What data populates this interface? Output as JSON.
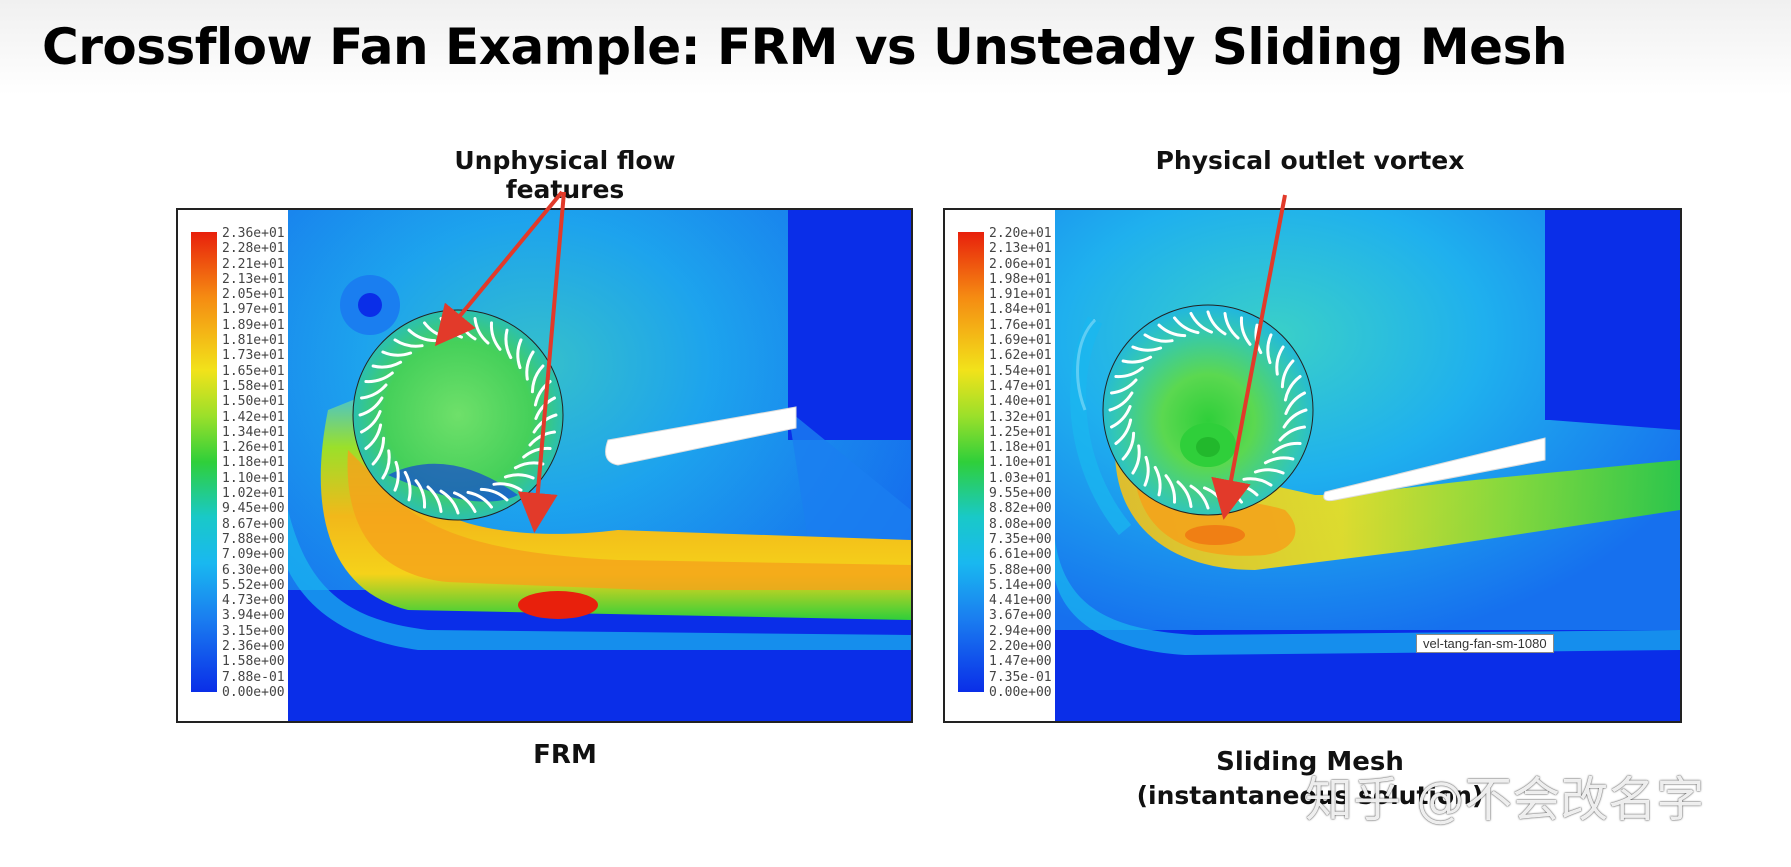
{
  "slide": {
    "title": "Crossflow Fan Example: FRM vs Unsteady Sliding Mesh"
  },
  "left_panel": {
    "annotation": "Unphysical flow features",
    "caption": "FRM",
    "legend_labels": [
      "2.36e+01",
      "2.28e+01",
      "2.21e+01",
      "2.13e+01",
      "2.05e+01",
      "1.97e+01",
      "1.89e+01",
      "1.81e+01",
      "1.73e+01",
      "1.65e+01",
      "1.58e+01",
      "1.50e+01",
      "1.42e+01",
      "1.34e+01",
      "1.26e+01",
      "1.18e+01",
      "1.10e+01",
      "1.02e+01",
      "9.45e+00",
      "8.67e+00",
      "7.88e+00",
      "7.09e+00",
      "6.30e+00",
      "5.52e+00",
      "4.73e+00",
      "3.94e+00",
      "3.15e+00",
      "2.36e+00",
      "1.58e+00",
      "7.88e-01",
      "0.00e+00"
    ]
  },
  "right_panel": {
    "annotation": "Physical outlet vortex",
    "caption_line1": "Sliding Mesh",
    "caption_line2": "(instantaneous solution)",
    "tag": "vel-tang-fan-sm-1080",
    "legend_labels": [
      "2.20e+01",
      "2.13e+01",
      "2.06e+01",
      "1.98e+01",
      "1.91e+01",
      "1.84e+01",
      "1.76e+01",
      "1.69e+01",
      "1.62e+01",
      "1.54e+01",
      "1.47e+01",
      "1.40e+01",
      "1.32e+01",
      "1.25e+01",
      "1.18e+01",
      "1.10e+01",
      "1.03e+01",
      "9.55e+00",
      "8.82e+00",
      "8.08e+00",
      "7.35e+00",
      "6.61e+00",
      "5.88e+00",
      "5.14e+00",
      "4.41e+00",
      "3.67e+00",
      "2.94e+00",
      "2.20e+00",
      "1.47e+00",
      "7.35e-01",
      "0.00e+00"
    ]
  },
  "watermark": "知乎 @不会改名字",
  "colors": {
    "arrow": "#e23a2a",
    "deep_blue": "#0a2ee8",
    "cyan": "#19b8f0",
    "green": "#2fcf3a",
    "yellow": "#f2e21a",
    "orange": "#f58a12",
    "red": "#e8200c"
  }
}
